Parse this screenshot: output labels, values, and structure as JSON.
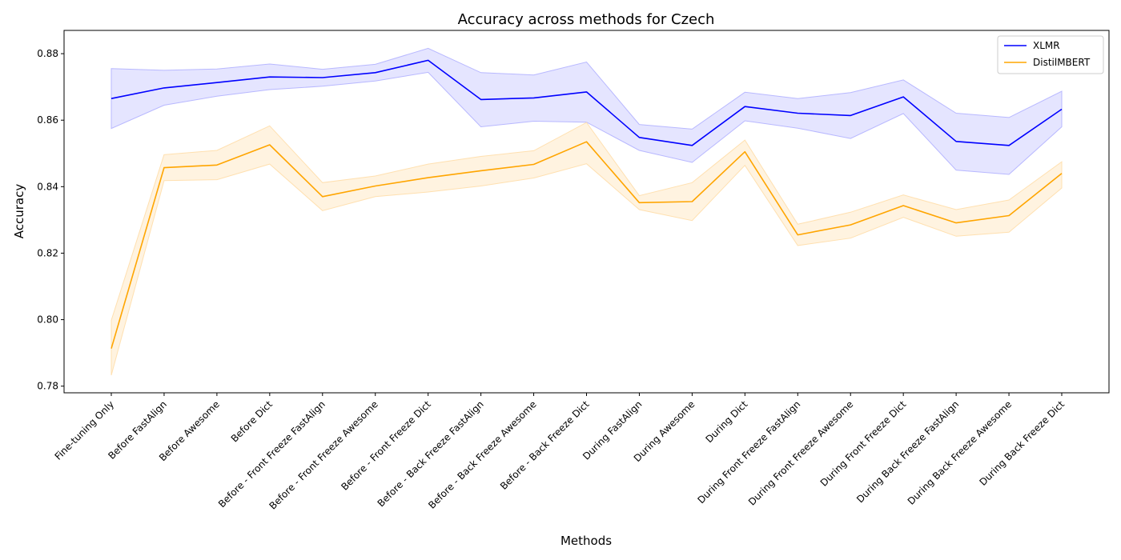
{
  "chart_data": {
    "type": "line",
    "title": "Accuracy across methods for Czech",
    "xlabel": "Methods",
    "ylabel": "Accuracy",
    "ylim": [
      0.778,
      0.887
    ],
    "yticks": [
      "0.78",
      "0.80",
      "0.82",
      "0.84",
      "0.86",
      "0.88"
    ],
    "grid": false,
    "legend_position": "top-right",
    "categories": [
      "Fine-tuning Only",
      "Before FastAlign",
      "Before Awesome",
      "Before Dict",
      "Before - Front Freeze FastAlign",
      "Before - Front Freeze Awesome",
      "Before - Front Freeze Dict",
      "Before - Back Freeze FastAlign",
      "Before - Back Freeze Awesome",
      "Before - Back Freeze Dict",
      "During FastAlign",
      "During Awesome",
      "During Dict",
      "During Front Freeze FastAlign",
      "During Front Freeze Awesome",
      "During Front Freeze Dict",
      "During Back Freeze FastAlign",
      "During Back Freeze Awesome",
      "During Back Freeze Dict"
    ],
    "series": [
      {
        "name": "XLMR",
        "color": "#0000ff",
        "band_color": "#e5e5ff",
        "band_edge": "#b8b8ff",
        "values": [
          0.8665,
          0.8697,
          0.8713,
          0.873,
          0.8728,
          0.8743,
          0.878,
          0.8662,
          0.8667,
          0.8685,
          0.8548,
          0.8524,
          0.8641,
          0.8621,
          0.8614,
          0.867,
          0.8536,
          0.8524,
          0.8633
        ],
        "lower": [
          0.8575,
          0.8645,
          0.8672,
          0.8692,
          0.8702,
          0.8718,
          0.8744,
          0.858,
          0.8597,
          0.8594,
          0.8509,
          0.8473,
          0.8598,
          0.8576,
          0.8545,
          0.862,
          0.845,
          0.8437,
          0.858
        ],
        "upper": [
          0.8755,
          0.875,
          0.8754,
          0.8769,
          0.8753,
          0.8768,
          0.8816,
          0.8743,
          0.8736,
          0.8775,
          0.8587,
          0.8573,
          0.8684,
          0.8665,
          0.8683,
          0.8721,
          0.8621,
          0.8608,
          0.8687
        ]
      },
      {
        "name": "DistilMBERT",
        "color": "#ffa500",
        "band_color": "#fff3e0",
        "band_edge": "#ffe0b0",
        "values": [
          0.7913,
          0.8457,
          0.8465,
          0.8526,
          0.837,
          0.8402,
          0.8427,
          0.8448,
          0.8467,
          0.8535,
          0.8352,
          0.8355,
          0.8505,
          0.8255,
          0.8285,
          0.8343,
          0.8291,
          0.8313,
          0.844
        ],
        "lower": [
          0.7833,
          0.8418,
          0.8421,
          0.8468,
          0.8328,
          0.837,
          0.8384,
          0.8402,
          0.8426,
          0.8469,
          0.8331,
          0.8298,
          0.8464,
          0.8223,
          0.8245,
          0.8308,
          0.8251,
          0.8263,
          0.8396
        ],
        "upper": [
          0.7998,
          0.8496,
          0.8509,
          0.8583,
          0.8412,
          0.8432,
          0.8468,
          0.8491,
          0.8508,
          0.8593,
          0.8373,
          0.8412,
          0.854,
          0.8287,
          0.8323,
          0.8375,
          0.8331,
          0.836,
          0.8475
        ]
      }
    ]
  }
}
